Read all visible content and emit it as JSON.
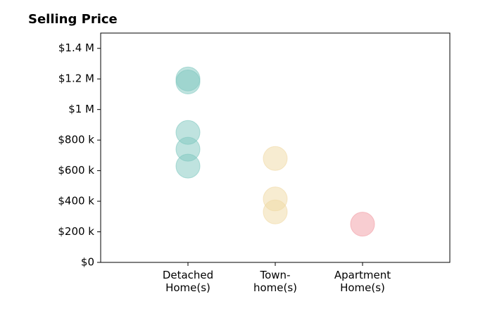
{
  "chart_data": {
    "type": "strip",
    "title": "Selling Price",
    "categories": [
      "Detached\nHome(s)",
      "Town-\nhome(s)",
      "Apartment\nHome(s)"
    ],
    "values": [
      [
        1200000,
        1180000,
        850000,
        740000,
        630000
      ],
      [
        680000,
        415000,
        330000
      ],
      [
        250000
      ]
    ],
    "colors": [
      "#7fc8bf",
      "#f0d9a3",
      "#f29ba3"
    ],
    "ylim": [
      0,
      1500000
    ],
    "yticks": [
      {
        "value": 0,
        "label": "$0"
      },
      {
        "value": 200000,
        "label": "$200 k"
      },
      {
        "value": 400000,
        "label": "$400 k"
      },
      {
        "value": 600000,
        "label": "$600 k"
      },
      {
        "value": 800000,
        "label": "$800 k"
      },
      {
        "value": 1000000,
        "label": "$1 M"
      },
      {
        "value": 1200000,
        "label": "$1.2 M"
      },
      {
        "value": 1400000,
        "label": "$1.4 M"
      }
    ]
  }
}
